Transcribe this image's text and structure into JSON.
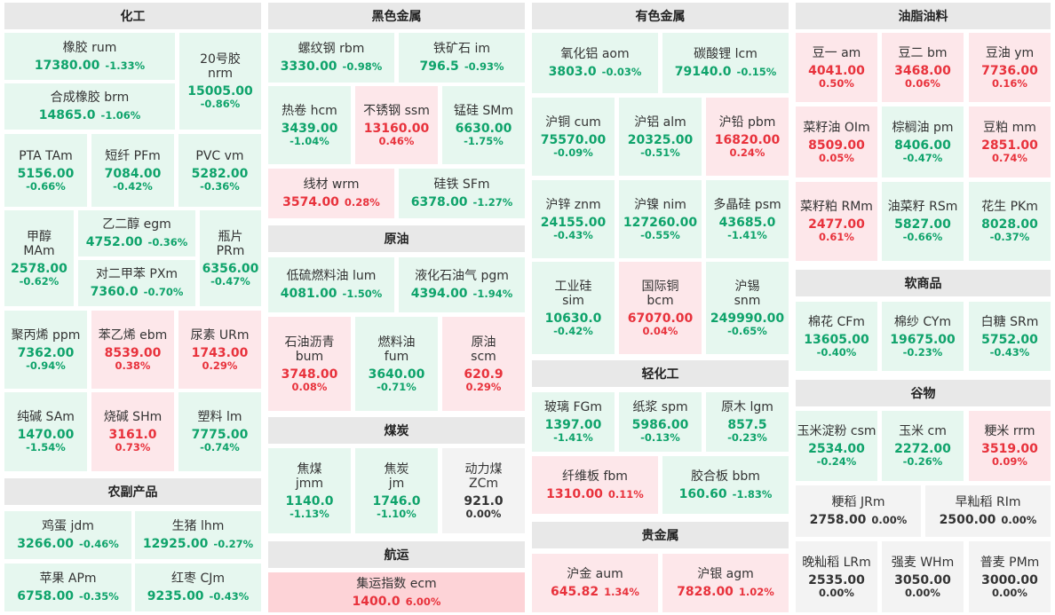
{
  "sections": {
    "s0": "化工",
    "s1": "农副产品",
    "s2": "黑色金属",
    "s3": "原油",
    "s4": "煤炭",
    "s5": "航运",
    "s6": "有色金属",
    "s7": "轻化工",
    "s8": "贵金属",
    "s9": "油脂油料",
    "s10": "软商品",
    "s11": "谷物"
  },
  "tiles": {
    "rum": {
      "name": "橡胶  rum",
      "price": "17380.00",
      "change": "-1.33%"
    },
    "nrm": {
      "name": "20号胶\nnrm",
      "price": "15005.00",
      "change": "-0.86%"
    },
    "brm": {
      "name": "合成橡胶  brm",
      "price": "14865.0",
      "change": "-1.06%"
    },
    "ta": {
      "name": "PTA  TAm",
      "price": "5156.00",
      "change": "-0.66%"
    },
    "pf": {
      "name": "短纤  PFm",
      "price": "7084.00",
      "change": "-0.42%"
    },
    "vm": {
      "name": "PVC  vm",
      "price": "5282.00",
      "change": "-0.36%"
    },
    "ma": {
      "name": "甲醇\nMAm",
      "price": "2578.00",
      "change": "-0.62%"
    },
    "eg": {
      "name": "乙二醇  egm",
      "price": "4752.00",
      "change": "-0.36%"
    },
    "pr": {
      "name": "瓶片\nPRm",
      "price": "6356.00",
      "change": "-0.47%"
    },
    "px": {
      "name": "对二甲苯  PXm",
      "price": "7360.0",
      "change": "-0.70%"
    },
    "pp": {
      "name": "聚丙烯  ppm",
      "price": "7362.00",
      "change": "-0.94%"
    },
    "eb": {
      "name": "苯乙烯  ebm",
      "price": "8539.00",
      "change": "0.38%"
    },
    "ur": {
      "name": "尿素  URm",
      "price": "1743.00",
      "change": "0.29%"
    },
    "sa": {
      "name": "纯碱  SAm",
      "price": "1470.00",
      "change": "-1.54%"
    },
    "sh": {
      "name": "烧碱  SHm",
      "price": "3161.0",
      "change": "0.73%"
    },
    "lm": {
      "name": "塑料  lm",
      "price": "7775.00",
      "change": "-0.74%"
    },
    "jd": {
      "name": "鸡蛋  jdm",
      "price": "3266.00",
      "change": "-0.46%"
    },
    "lh": {
      "name": "生猪  lhm",
      "price": "12925.00",
      "change": "-0.27%"
    },
    "ap": {
      "name": "苹果  APm",
      "price": "6758.00",
      "change": "-0.35%"
    },
    "cj": {
      "name": "红枣  CJm",
      "price": "9235.00",
      "change": "-0.43%"
    },
    "rb": {
      "name": "螺纹钢  rbm",
      "price": "3330.00",
      "change": "-0.98%"
    },
    "im": {
      "name": "铁矿石  im",
      "price": "796.5",
      "change": "-0.93%"
    },
    "hc": {
      "name": "热卷  hcm",
      "price": "3439.00",
      "change": "-1.04%"
    },
    "ss": {
      "name": "不锈钢  ssm",
      "price": "13160.00",
      "change": "0.46%"
    },
    "sm": {
      "name": "锰硅  SMm",
      "price": "6630.00",
      "change": "-1.75%"
    },
    "wr": {
      "name": "线材  wrm",
      "price": "3574.00",
      "change": "0.28%"
    },
    "sf": {
      "name": "硅铁  SFm",
      "price": "6378.00",
      "change": "-1.27%"
    },
    "lu": {
      "name": "低硫燃料油  lum",
      "price": "4081.00",
      "change": "-1.50%"
    },
    "pg": {
      "name": "液化石油气  pgm",
      "price": "4394.00",
      "change": "-1.94%"
    },
    "bu": {
      "name": "石油沥青\nbum",
      "price": "3748.00",
      "change": "0.08%"
    },
    "fu": {
      "name": "燃料油\nfum",
      "price": "3640.00",
      "change": "-0.71%"
    },
    "sc": {
      "name": "原油\nscm",
      "price": "620.9",
      "change": "0.29%"
    },
    "jm": {
      "name": "焦煤\njmm",
      "price": "1140.0",
      "change": "-1.13%"
    },
    "j": {
      "name": "焦炭\njm",
      "price": "1746.0",
      "change": "-1.10%"
    },
    "zc": {
      "name": "动力煤\nZCm",
      "price": "921.0",
      "change": "0.00%"
    },
    "ec": {
      "name": "集运指数  ecm",
      "price": "1400.0",
      "change": "6.00%"
    },
    "ao": {
      "name": "氧化铝  aom",
      "price": "3803.0",
      "change": "-0.03%"
    },
    "lc": {
      "name": "碳酸锂  lcm",
      "price": "79140.0",
      "change": "-0.15%"
    },
    "cu": {
      "name": "沪铜  cum",
      "price": "75570.00",
      "change": "-0.09%"
    },
    "al": {
      "name": "沪铝  alm",
      "price": "20325.00",
      "change": "-0.51%"
    },
    "pb": {
      "name": "沪铅  pbm",
      "price": "16820.00",
      "change": "0.24%"
    },
    "zn": {
      "name": "沪锌  znm",
      "price": "24155.00",
      "change": "-0.43%"
    },
    "ni": {
      "name": "沪镍  nim",
      "price": "127260.00",
      "change": "-0.55%"
    },
    "ps": {
      "name": "多晶硅  psm",
      "price": "43685.0",
      "change": "-1.41%"
    },
    "si": {
      "name": "工业硅\nsim",
      "price": "10630.0",
      "change": "-0.42%"
    },
    "bc": {
      "name": "国际铜\nbcm",
      "price": "67070.00",
      "change": "0.04%"
    },
    "sn": {
      "name": "沪锡\nsnm",
      "price": "249990.00",
      "change": "-0.65%"
    },
    "fg": {
      "name": "玻璃  FGm",
      "price": "1397.00",
      "change": "-1.41%"
    },
    "sp": {
      "name": "纸浆  spm",
      "price": "5986.00",
      "change": "-0.13%"
    },
    "lg": {
      "name": "原木  lgm",
      "price": "857.5",
      "change": "-0.23%"
    },
    "fb": {
      "name": "纤维板  fbm",
      "price": "1310.00",
      "change": "0.11%"
    },
    "bb": {
      "name": "胶合板  bbm",
      "price": "160.60",
      "change": "-1.83%"
    },
    "au": {
      "name": "沪金  aum",
      "price": "645.82",
      "change": "1.34%"
    },
    "ag": {
      "name": "沪银  agm",
      "price": "7828.00",
      "change": "1.02%"
    },
    "a": {
      "name": "豆一  am",
      "price": "4041.00",
      "change": "0.50%"
    },
    "b": {
      "name": "豆二  bm",
      "price": "3468.00",
      "change": "0.06%"
    },
    "y": {
      "name": "豆油  ym",
      "price": "7736.00",
      "change": "0.16%"
    },
    "oi": {
      "name": "菜籽油  OIm",
      "price": "8509.00",
      "change": "0.05%"
    },
    "p": {
      "name": "棕榈油  pm",
      "price": "8406.00",
      "change": "-0.47%"
    },
    "m": {
      "name": "豆粕  mm",
      "price": "2851.00",
      "change": "0.74%"
    },
    "rmm": {
      "name": "菜籽粕  RMm",
      "price": "2477.00",
      "change": "0.61%"
    },
    "rs": {
      "name": "油菜籽  RSm",
      "price": "5827.00",
      "change": "-0.66%"
    },
    "pk": {
      "name": "花生  PKm",
      "price": "8028.00",
      "change": "-0.37%"
    },
    "cf": {
      "name": "棉花  CFm",
      "price": "13605.00",
      "change": "-0.40%"
    },
    "cy": {
      "name": "棉纱  CYm",
      "price": "19675.00",
      "change": "-0.23%"
    },
    "sr": {
      "name": "白糖  SRm",
      "price": "5752.00",
      "change": "-0.43%"
    },
    "cs": {
      "name": "玉米淀粉  csm",
      "price": "2534.00",
      "change": "-0.24%"
    },
    "c": {
      "name": "玉米  cm",
      "price": "2272.00",
      "change": "-0.26%"
    },
    "rr": {
      "name": "粳米  rrm",
      "price": "3519.00",
      "change": "0.09%"
    },
    "jr": {
      "name": "粳稻  JRm",
      "price": "2758.00",
      "change": "0.00%"
    },
    "ri": {
      "name": "早籼稻  RIm",
      "price": "2500.00",
      "change": "0.00%"
    },
    "lr": {
      "name": "晚籼稻  LRm",
      "price": "2535.00",
      "change": "0.00%"
    },
    "wh": {
      "name": "强麦  WHm",
      "price": "3050.00",
      "change": "0.00%"
    },
    "pm": {
      "name": "普麦  PMm",
      "price": "3000.00",
      "change": "0.00%"
    }
  },
  "colors": {
    "up": "#e8323c",
    "down": "#0fa36b",
    "flat": "#333333",
    "up_bg": "#fde7ea",
    "down_bg": "#e6f7ef",
    "flat_bg": "#f3f3f3"
  }
}
